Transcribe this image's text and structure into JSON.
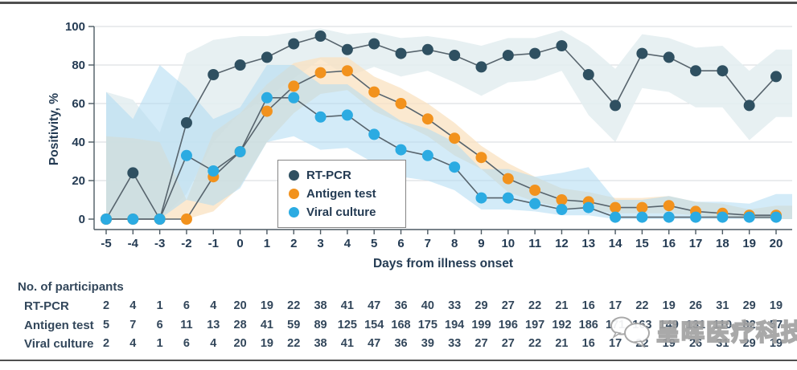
{
  "figure": {
    "y_axis_label": "Positivity, %",
    "x_axis_label": "Days from illness onset",
    "legend": [
      {
        "label": "RT-PCR",
        "color": "#2f5061"
      },
      {
        "label": "Antigen test",
        "color": "#f2921d"
      },
      {
        "label": "Viral culture",
        "color": "#2babe2"
      }
    ]
  },
  "chart_data": {
    "type": "line",
    "title": "",
    "xlabel": "Days from illness onset",
    "ylabel": "Positivity, %",
    "ylim": [
      0,
      100
    ],
    "yticks": [
      0,
      20,
      40,
      60,
      80,
      100
    ],
    "grid": true,
    "legend_position": "inside-center",
    "grid_color": "#d6dadd",
    "line_color": "#57646d",
    "axis_color": "#4d5a63",
    "x": [
      -5,
      -4,
      -3,
      -2,
      -1,
      0,
      1,
      2,
      3,
      4,
      5,
      6,
      7,
      8,
      9,
      10,
      11,
      12,
      13,
      14,
      15,
      16,
      17,
      18,
      19,
      20
    ],
    "series": [
      {
        "id": "rt-pcr",
        "name": "RT-PCR",
        "color": "#2f5061",
        "values": [
          0,
          24,
          0,
          50,
          75,
          80,
          84,
          91,
          95,
          88,
          91,
          86,
          88,
          85,
          79,
          85,
          86,
          90,
          75,
          59,
          86,
          84,
          77,
          77,
          59,
          74
        ],
        "band": {
          "color": "#e3edf0",
          "opacity": 0.85,
          "upper": [
            66,
            62,
            45,
            86,
            93,
            95,
            95,
            97,
            99,
            96,
            97,
            94,
            95,
            93,
            90,
            94,
            94,
            98,
            90,
            78,
            96,
            94,
            89,
            90,
            77,
            88
          ],
          "lower": [
            0,
            0,
            0,
            13,
            40,
            55,
            63,
            73,
            83,
            74,
            79,
            74,
            77,
            71,
            64,
            71,
            72,
            77,
            54,
            40,
            68,
            66,
            58,
            58,
            41,
            53
          ]
        }
      },
      {
        "id": "antigen-test",
        "name": "Antigen test",
        "color": "#f2921d",
        "values": [
          0,
          0,
          0,
          0,
          22,
          35,
          56,
          69,
          76,
          77,
          66,
          60,
          52,
          42,
          32,
          21,
          15,
          10,
          9,
          6,
          6,
          7,
          4,
          3,
          2,
          2
        ],
        "band": {
          "color": "#fae2c0",
          "opacity": 0.75,
          "upper": [
            43,
            42,
            40,
            10,
            45,
            55,
            70,
            81,
            84,
            84,
            74,
            68,
            60,
            50,
            38,
            29,
            22,
            16,
            14,
            11,
            11,
            12,
            9,
            8,
            5,
            7
          ],
          "lower": [
            0,
            0,
            0,
            0,
            4,
            17,
            40,
            55,
            65,
            67,
            56,
            50,
            43,
            33,
            26,
            14,
            9,
            6,
            5,
            3,
            3,
            3,
            2,
            1,
            0,
            0
          ]
        }
      },
      {
        "id": "viral-culture",
        "name": "Viral culture",
        "color": "#2babe2",
        "values": [
          0,
          0,
          0,
          33,
          25,
          35,
          63,
          63,
          53,
          54,
          44,
          36,
          33,
          27,
          11,
          11,
          8,
          5,
          6,
          1,
          1,
          1,
          1,
          1,
          1,
          1
        ],
        "band": {
          "color": "#aedbf3",
          "opacity": 0.55,
          "upper": [
            66,
            52,
            80,
            68,
            52,
            58,
            80,
            80,
            70,
            70,
            60,
            51,
            47,
            40,
            26,
            26,
            22,
            24,
            27,
            10,
            10,
            12,
            9,
            9,
            8,
            13
          ],
          "lower": [
            0,
            0,
            0,
            10,
            7,
            16,
            40,
            43,
            36,
            37,
            29,
            22,
            20,
            15,
            5,
            5,
            4,
            2,
            2,
            0,
            0,
            0,
            0,
            0,
            0,
            0
          ]
        }
      }
    ]
  },
  "participants_table": {
    "header": "No. of participants",
    "rows": [
      {
        "label": "RT-PCR",
        "values": [
          2,
          4,
          1,
          6,
          4,
          20,
          19,
          22,
          38,
          41,
          47,
          36,
          40,
          33,
          29,
          27,
          22,
          21,
          16,
          17,
          22,
          19,
          26,
          31,
          29,
          19
        ]
      },
      {
        "label": "Antigen test",
        "values": [
          5,
          7,
          6,
          11,
          13,
          28,
          41,
          59,
          89,
          125,
          154,
          168,
          175,
          194,
          199,
          196,
          197,
          192,
          186,
          171,
          163,
          149,
          131,
          110,
          82,
          57
        ]
      },
      {
        "label": "Viral culture",
        "values": [
          2,
          4,
          1,
          6,
          4,
          20,
          19,
          22,
          38,
          41,
          47,
          36,
          39,
          33,
          27,
          27,
          22,
          21,
          16,
          17,
          22,
          19,
          26,
          31,
          29,
          19
        ]
      }
    ]
  },
  "watermark": {
    "text": "呈晖医疗科技",
    "icon": "chat-bubbles-icon"
  }
}
